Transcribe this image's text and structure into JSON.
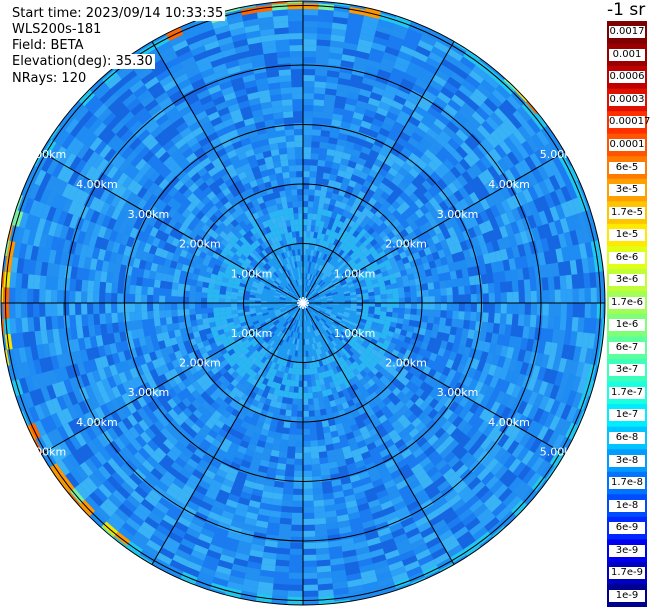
{
  "info": {
    "start_time": "Start time: 2023/09/14 10:33:35",
    "device": "WLS200s-181",
    "field": "Field: BETA",
    "elevation": "Elevation(deg): 35.30",
    "nrays": "NRays: 120"
  },
  "colorbar": {
    "units": "-1 sr",
    "labels": [
      "0.0017",
      "0.001",
      "0.0006",
      "0.0003",
      "0.00017",
      "0.0001",
      "6e-5",
      "3e-5",
      "1.7e-5",
      "1e-5",
      "6e-6",
      "3e-6",
      "1.7e-6",
      "1e-6",
      "6e-7",
      "3e-7",
      "1.7e-7",
      "1e-7",
      "6e-8",
      "3e-8",
      "1.7e-8",
      "1e-8",
      "6e-9",
      "3e-9",
      "1.7e-9",
      "1e-9"
    ],
    "colors": [
      "#7f0000",
      "#9a0000",
      "#c00000",
      "#e01000",
      "#ff3000",
      "#ff5500",
      "#ff7a00",
      "#ff9f00",
      "#ffc400",
      "#ffe900",
      "#e0ff16",
      "#c0ff37",
      "#a0ff57",
      "#7dff7a",
      "#5cff9b",
      "#3cffbb",
      "#1affdd",
      "#00ecff",
      "#00c4ff",
      "#009cff",
      "#0074ff",
      "#004cff",
      "#0028ff",
      "#0000f0",
      "#0000c0",
      "#00008f"
    ]
  },
  "chart_data": {
    "type": "heatmap",
    "projection": "polar PPI",
    "field": "BETA",
    "rays": 120,
    "range_rings_km": [
      1.0,
      2.0,
      3.0,
      4.0,
      5.0
    ],
    "max_range_km": 5.2,
    "ring_labels": [
      "1.00km",
      "2.00km",
      "3.00km",
      "4.00km",
      "5.00km"
    ],
    "radial_lines_deg": [
      0,
      30,
      60,
      90,
      120,
      150,
      180,
      210,
      240,
      270,
      300,
      330
    ],
    "label_bearings_deg": [
      -60,
      60,
      120,
      -120
    ],
    "palette": {
      "near": "#1e9bf0",
      "mid": [
        "#1a7cf0",
        "#1e8cf2",
        "#2c9ff6",
        "#3ab2f6",
        "#1566e0",
        "#238ff0"
      ],
      "edge": [
        "#22c7f0",
        "#7cf0a0",
        "#f5e400",
        "#ff9800",
        "#ff6600"
      ],
      "center_ring": "#2ab6f2"
    },
    "colorscale": "log",
    "value_range": [
      1e-09,
      0.0017
    ]
  }
}
